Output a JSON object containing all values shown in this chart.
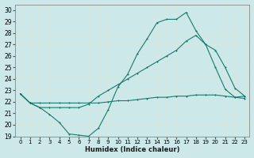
{
  "xlabel": "Humidex (Indice chaleur)",
  "bg_color": "#cce8e8",
  "grid_color": "#d4e8e0",
  "line_color": "#1a7a6e",
  "xlim": [
    -0.5,
    23.5
  ],
  "ylim": [
    19,
    30.5
  ],
  "xticks": [
    0,
    1,
    2,
    3,
    4,
    5,
    6,
    7,
    8,
    9,
    10,
    11,
    12,
    13,
    14,
    15,
    16,
    17,
    18,
    19,
    20,
    21,
    22,
    23
  ],
  "yticks": [
    19,
    20,
    21,
    22,
    23,
    24,
    25,
    26,
    27,
    28,
    29,
    30
  ],
  "line1_x": [
    0,
    1,
    2,
    3,
    4,
    5,
    6,
    7,
    8,
    9,
    10,
    11,
    12,
    13,
    14,
    15,
    16,
    17,
    18,
    19,
    20,
    21,
    22,
    23
  ],
  "line1_y": [
    22.7,
    21.9,
    21.5,
    20.9,
    20.2,
    19.2,
    19.1,
    19.0,
    19.7,
    21.3,
    23.3,
    24.4,
    26.2,
    27.5,
    28.9,
    29.2,
    29.2,
    29.8,
    28.2,
    27.0,
    25.0,
    23.1,
    22.4,
    22.5
  ],
  "line2_x": [
    0,
    1,
    2,
    3,
    4,
    5,
    6,
    7,
    8,
    9,
    10,
    11,
    12,
    13,
    14,
    15,
    16,
    17,
    18,
    19,
    20,
    21,
    22,
    23
  ],
  "line2_y": [
    22.7,
    21.9,
    21.9,
    21.9,
    21.9,
    21.9,
    21.9,
    21.9,
    21.9,
    22.0,
    22.1,
    22.1,
    22.2,
    22.3,
    22.4,
    22.4,
    22.5,
    22.5,
    22.6,
    22.6,
    22.6,
    22.5,
    22.4,
    22.3
  ],
  "line3_x": [
    0,
    1,
    2,
    3,
    4,
    5,
    6,
    7,
    8,
    9,
    10,
    11,
    12,
    13,
    14,
    15,
    16,
    17,
    18,
    19,
    20,
    21,
    22,
    23
  ],
  "line3_y": [
    22.7,
    21.9,
    21.5,
    21.5,
    21.5,
    21.5,
    21.5,
    21.8,
    22.5,
    23.0,
    23.5,
    24.0,
    24.5,
    25.0,
    25.5,
    26.0,
    26.5,
    27.3,
    27.8,
    27.0,
    26.5,
    25.0,
    23.2,
    22.5
  ]
}
